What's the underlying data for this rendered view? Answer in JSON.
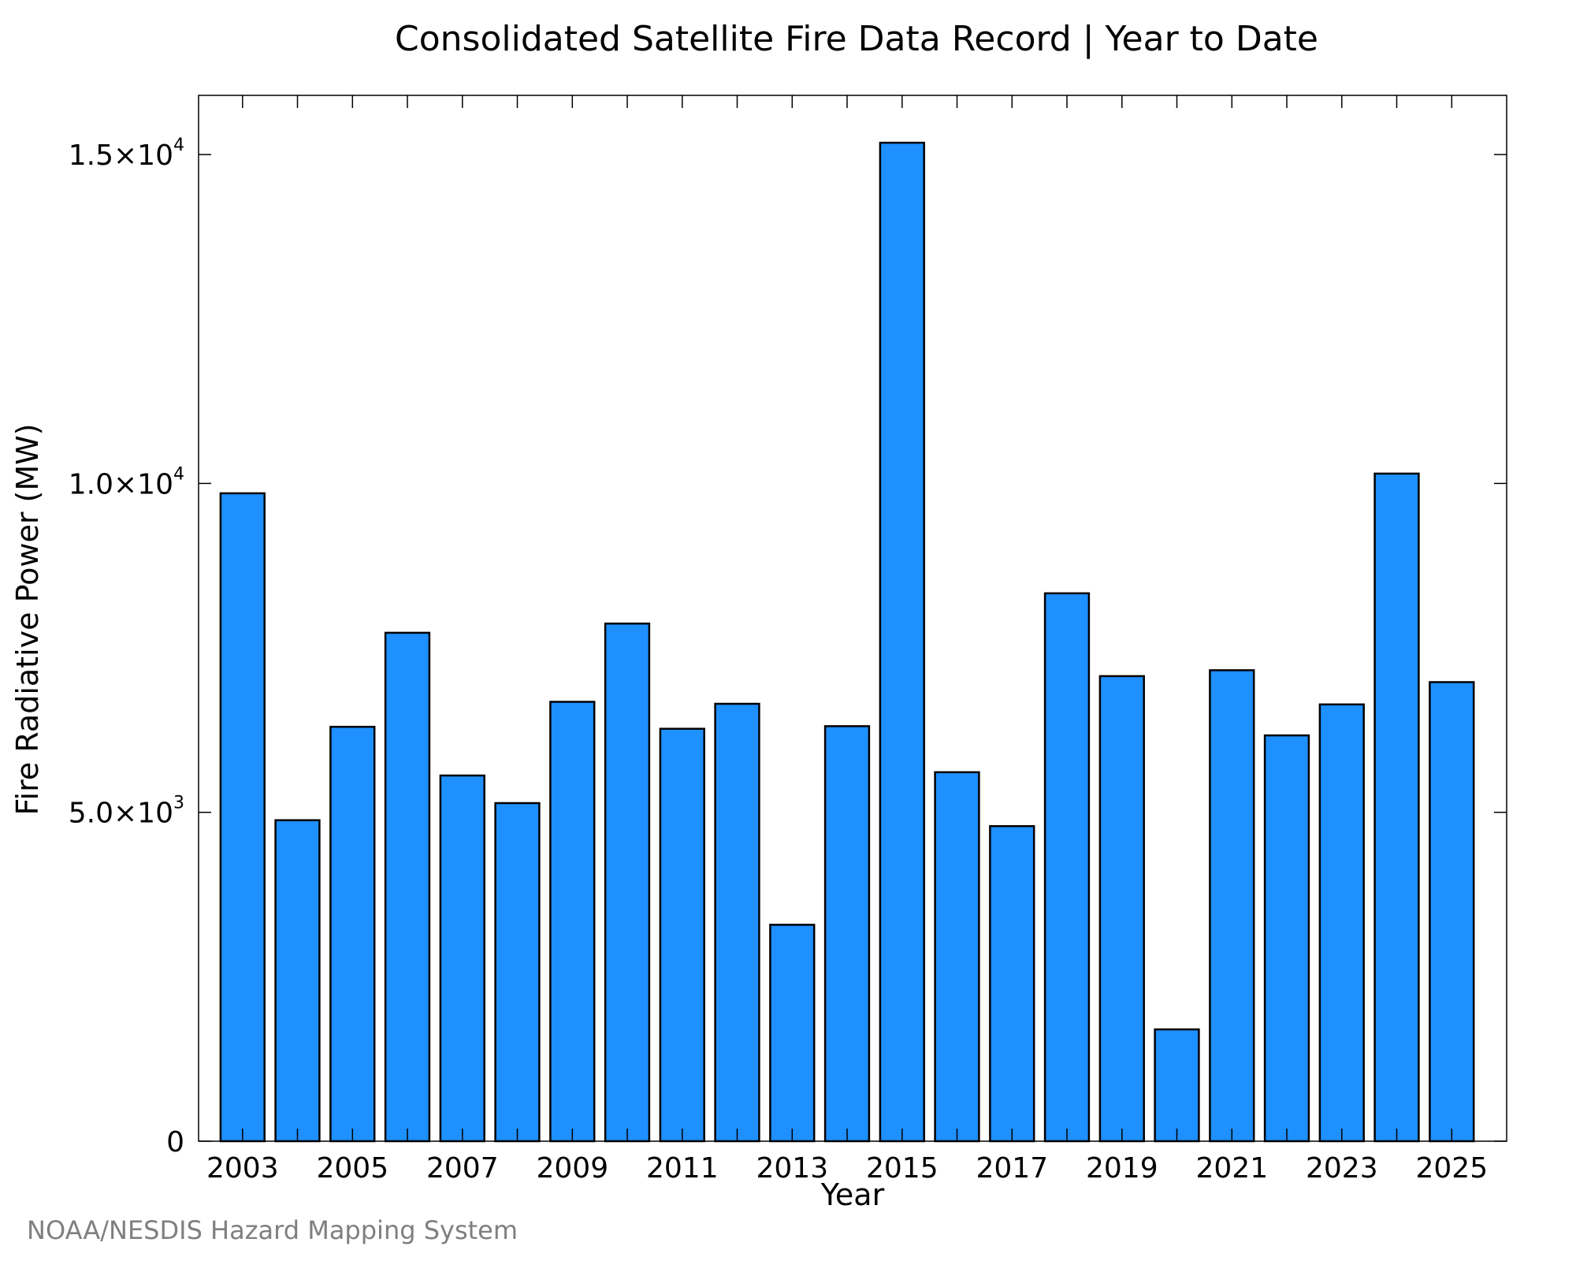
{
  "chart_data": {
    "type": "bar",
    "title": "Consolidated Satellite Fire Data Record | Year to Date",
    "xlabel": "Year",
    "ylabel": "Fire Radiative Power (MW)",
    "credit": "NOAA/NESDIS Hazard Mapping System",
    "categories": [
      "2003",
      "2004",
      "2005",
      "2006",
      "2007",
      "2008",
      "2009",
      "2010",
      "2011",
      "2012",
      "2013",
      "2014",
      "2015",
      "2016",
      "2017",
      "2018",
      "2019",
      "2020",
      "2021",
      "2022",
      "2023",
      "2024",
      "2025"
    ],
    "values": [
      9850,
      4880,
      6300,
      7730,
      5560,
      5140,
      6680,
      7870,
      6270,
      6650,
      3290,
      6310,
      15180,
      5610,
      4790,
      8330,
      7070,
      1700,
      7160,
      6170,
      6640,
      10150,
      6980
    ],
    "ylim": [
      0,
      15900
    ],
    "xlim": [
      2002.2,
      2026.0
    ],
    "x_tick_labels": [
      "2003",
      "2005",
      "2007",
      "2009",
      "2011",
      "2013",
      "2015",
      "2017",
      "2019",
      "2021",
      "2023",
      "2025"
    ],
    "y_ticks": [
      {
        "value": 0,
        "mantissa": "0",
        "exponent": ""
      },
      {
        "value": 5000,
        "mantissa": "5.0×10",
        "exponent": "3"
      },
      {
        "value": 10000,
        "mantissa": "1.0×10",
        "exponent": "4"
      },
      {
        "value": 15000,
        "mantissa": "1.5×10",
        "exponent": "4"
      }
    ],
    "bar_color": "#1e90ff",
    "bar_edge_color": "#000000",
    "grid": false,
    "legend": "none"
  }
}
